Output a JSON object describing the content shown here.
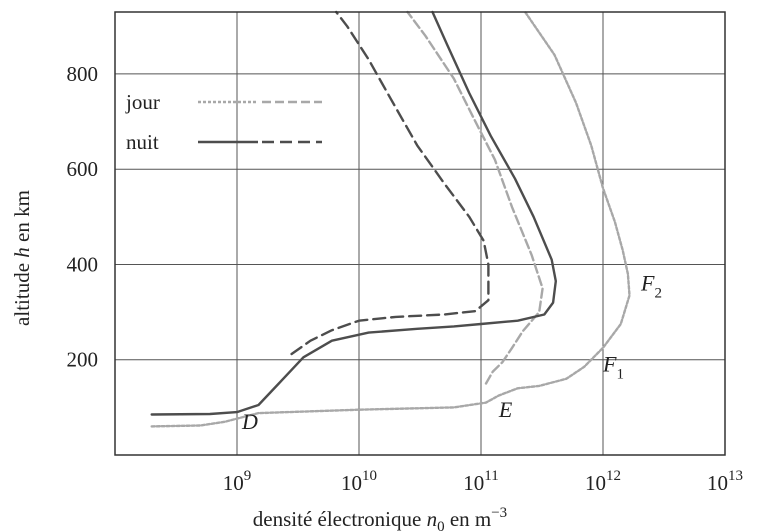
{
  "chart_data": {
    "type": "line",
    "xlabel_prefix": "densité électronique ",
    "xlabel_var": "n",
    "xlabel_sub": "0",
    "xlabel_unit": " en m",
    "xlabel_exp": "−3",
    "ylabel_prefix": "altitude ",
    "ylabel_var": "h",
    "ylabel_suffix": " en km",
    "x_scale": "log",
    "xlim": [
      100000000.0,
      10000000000000.0
    ],
    "ylim": [
      0,
      930
    ],
    "grid": true,
    "x_ticks": [
      {
        "value": 1000000000.0,
        "base": "10",
        "exp": "9"
      },
      {
        "value": 10000000000.0,
        "base": "10",
        "exp": "10"
      },
      {
        "value": 100000000000.0,
        "base": "10",
        "exp": "11"
      },
      {
        "value": 1000000000000.0,
        "base": "10",
        "exp": "12"
      },
      {
        "value": 10000000000000.0,
        "base": "10",
        "exp": "13"
      }
    ],
    "y_ticks": [
      {
        "value": 200,
        "label": "200"
      },
      {
        "value": 400,
        "label": "400"
      },
      {
        "value": 600,
        "label": "600"
      },
      {
        "value": 800,
        "label": "800"
      }
    ],
    "legend": {
      "placement": "top-left",
      "entries": [
        {
          "label": "jour",
          "series": [
            "jour-haut",
            "jour-bas"
          ]
        },
        {
          "label": "nuit",
          "series": [
            "nuit-haut",
            "nuit-bas"
          ]
        }
      ]
    },
    "series": [
      {
        "id": "jour-haut",
        "color": "#a8a8a8",
        "dash": "3 2",
        "points": [
          [
            200000000.0,
            60
          ],
          [
            500000000.0,
            62
          ],
          [
            800000000.0,
            70
          ],
          [
            1500000000.0,
            88
          ],
          [
            10000000000.0,
            95
          ],
          [
            60000000000.0,
            100
          ],
          [
            110000000000.0,
            110
          ],
          [
            140000000000.0,
            125
          ],
          [
            200000000000.0,
            140
          ],
          [
            300000000000.0,
            145
          ],
          [
            500000000000.0,
            160
          ],
          [
            700000000000.0,
            185
          ],
          [
            1000000000000.0,
            225
          ],
          [
            1400000000000.0,
            275
          ],
          [
            1650000000000.0,
            335
          ],
          [
            1600000000000.0,
            380
          ],
          [
            1450000000000.0,
            430
          ],
          [
            1250000000000.0,
            490
          ],
          [
            1000000000000.0,
            560
          ],
          [
            800000000000.0,
            650
          ],
          [
            600000000000.0,
            740
          ],
          [
            400000000000.0,
            840
          ],
          [
            230000000000.0,
            930
          ]
        ]
      },
      {
        "id": "jour-bas",
        "color": "#a8a8a8",
        "dash": "9 4",
        "points": [
          [
            110000000000.0,
            150
          ],
          [
            125000000000.0,
            175
          ],
          [
            150000000000.0,
            195
          ],
          [
            180000000000.0,
            225
          ],
          [
            220000000000.0,
            260
          ],
          [
            300000000000.0,
            300
          ],
          [
            320000000000.0,
            350
          ],
          [
            260000000000.0,
            420
          ],
          [
            180000000000.0,
            520
          ],
          [
            130000000000.0,
            620
          ],
          [
            90000000000.0,
            700
          ],
          [
            60000000000.0,
            790
          ],
          [
            35000000000.0,
            880
          ],
          [
            25000000000.0,
            930
          ]
        ]
      },
      {
        "id": "nuit-haut",
        "color": "#4d4d4d",
        "dash": "",
        "points": [
          [
            200000000.0,
            85
          ],
          [
            600000000.0,
            86
          ],
          [
            1000000000.0,
            90
          ],
          [
            1500000000.0,
            105
          ],
          [
            2200000000.0,
            150
          ],
          [
            3500000000.0,
            205
          ],
          [
            6000000000.0,
            240
          ],
          [
            12000000000.0,
            257
          ],
          [
            30000000000.0,
            265
          ],
          [
            60000000000.0,
            270
          ],
          [
            100000000000.0,
            275
          ],
          [
            200000000000.0,
            282
          ],
          [
            330000000000.0,
            295
          ],
          [
            390000000000.0,
            320
          ],
          [
            410000000000.0,
            365
          ],
          [
            380000000000.0,
            410
          ],
          [
            270000000000.0,
            500
          ],
          [
            190000000000.0,
            580
          ],
          [
            120000000000.0,
            670
          ],
          [
            80000000000.0,
            760
          ],
          [
            53000000000.0,
            860
          ],
          [
            40000000000.0,
            930
          ]
        ]
      },
      {
        "id": "nuit-bas",
        "color": "#4d4d4d",
        "dash": "12 6",
        "points": [
          [
            2800000000.0,
            212
          ],
          [
            4000000000.0,
            240
          ],
          [
            6000000000.0,
            262
          ],
          [
            10000000000.0,
            282
          ],
          [
            20000000000.0,
            290
          ],
          [
            50000000000.0,
            295
          ],
          [
            90000000000.0,
            302
          ],
          [
            115000000000.0,
            325
          ],
          [
            115000000000.0,
            400
          ],
          [
            105000000000.0,
            450
          ],
          [
            80000000000.0,
            500
          ],
          [
            50000000000.0,
            570
          ],
          [
            30000000000.0,
            650
          ],
          [
            18000000000.0,
            750
          ],
          [
            12000000000.0,
            830
          ],
          [
            8000000000.0,
            900
          ],
          [
            6500000000.0,
            930
          ]
        ]
      }
    ],
    "annotations": [
      {
        "text": "D",
        "sub": "",
        "x": 1100000000.0,
        "y": 55
      },
      {
        "text": "E",
        "sub": "",
        "x": 140000000000.0,
        "y": 80
      },
      {
        "text": "F",
        "sub": "1",
        "x": 1000000000000.0,
        "y": 175
      },
      {
        "text": "F",
        "sub": "2",
        "x": 2050000000000.0,
        "y": 345
      }
    ]
  }
}
